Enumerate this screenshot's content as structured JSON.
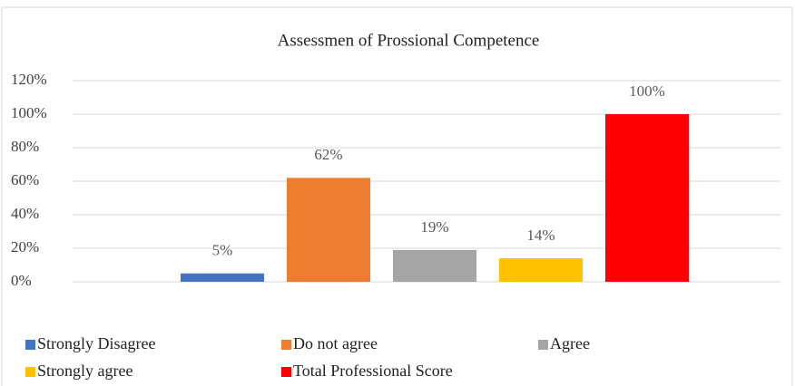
{
  "chart_data": {
    "type": "bar",
    "title": "Assessmen of Prossional Competence",
    "categories": [
      null
    ],
    "series": [
      {
        "name": "Strongly Disagree",
        "color": "#4472c4",
        "values": [
          5
        ],
        "value_labels": [
          "5%"
        ]
      },
      {
        "name": "Do not agree",
        "color": "#ed7d31",
        "values": [
          62
        ],
        "value_labels": [
          "62%"
        ]
      },
      {
        "name": "Agree",
        "color": "#a5a5a5",
        "values": [
          19
        ],
        "value_labels": [
          "19%"
        ]
      },
      {
        "name": "Strongly agree",
        "color": "#ffc000",
        "values": [
          14
        ],
        "value_labels": [
          "14%"
        ]
      },
      {
        "name": "Total Professional Score",
        "color": "#ff0000",
        "values": [
          100
        ],
        "value_labels": [
          "100%"
        ]
      }
    ],
    "ylim": [
      0,
      120
    ],
    "yticks": [
      {
        "value": 0,
        "label": "0%"
      },
      {
        "value": 20,
        "label": "20%"
      },
      {
        "value": 40,
        "label": "40%"
      },
      {
        "value": 60,
        "label": "60%"
      },
      {
        "value": 80,
        "label": "80%"
      },
      {
        "value": 100,
        "label": "100%"
      },
      {
        "value": 120,
        "label": "120%"
      }
    ],
    "grid": true,
    "legend": "bottom"
  }
}
